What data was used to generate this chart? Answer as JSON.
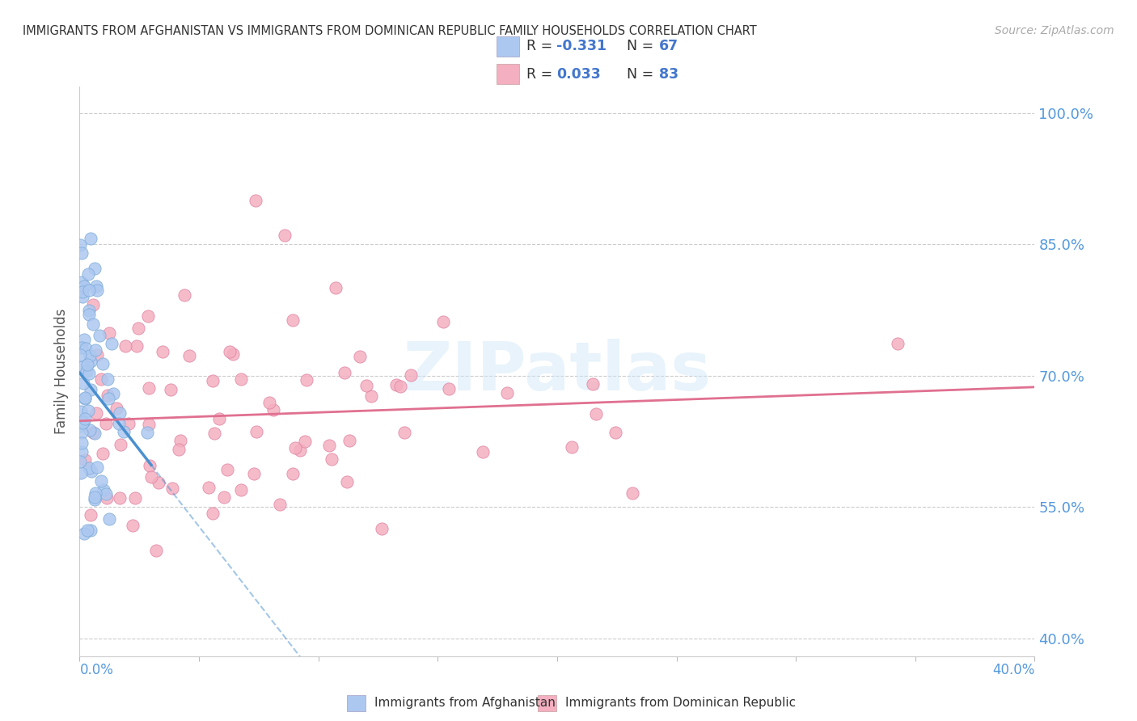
{
  "title": "IMMIGRANTS FROM AFGHANISTAN VS IMMIGRANTS FROM DOMINICAN REPUBLIC FAMILY HOUSEHOLDS CORRELATION CHART",
  "source": "Source: ZipAtlas.com",
  "ylabel": "Family Households",
  "yticks": [
    40.0,
    55.0,
    70.0,
    85.0,
    100.0
  ],
  "xlim": [
    0.0,
    40.0
  ],
  "ylim": [
    38.0,
    103.0
  ],
  "legend_r1": "-0.331",
  "legend_n1": "67",
  "legend_r2": "0.033",
  "legend_n2": "83",
  "color_afg_fill": "#adc8f0",
  "color_afg_edge": "#7aaad8",
  "color_dom_fill": "#f4afc0",
  "color_dom_edge": "#e080a0",
  "color_afg_line": "#4a90d0",
  "color_dom_line": "#e07090",
  "color_axis_blue": "#5599dd",
  "color_legend_text_blue": "#4477cc",
  "color_legend_text_n": "#333333",
  "watermark": "ZIPatlas",
  "seed_afg": 101,
  "seed_dom": 202
}
